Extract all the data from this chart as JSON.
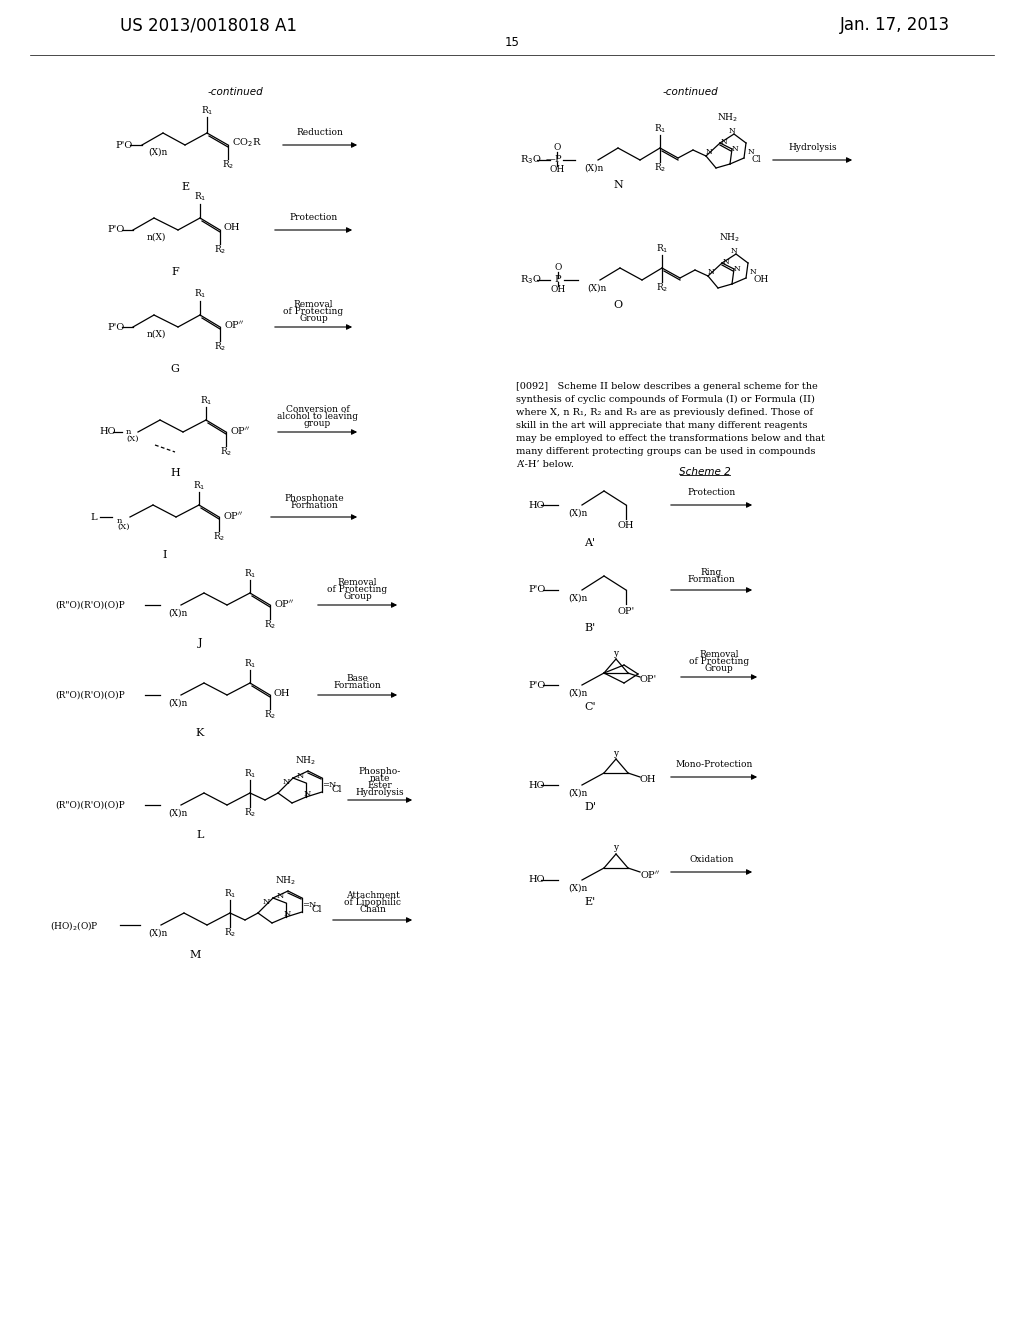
{
  "page_number": "15",
  "patent_number": "US 2013/0018018 A1",
  "date": "Jan. 17, 2013",
  "background_color": "#ffffff",
  "text_color": "#000000"
}
